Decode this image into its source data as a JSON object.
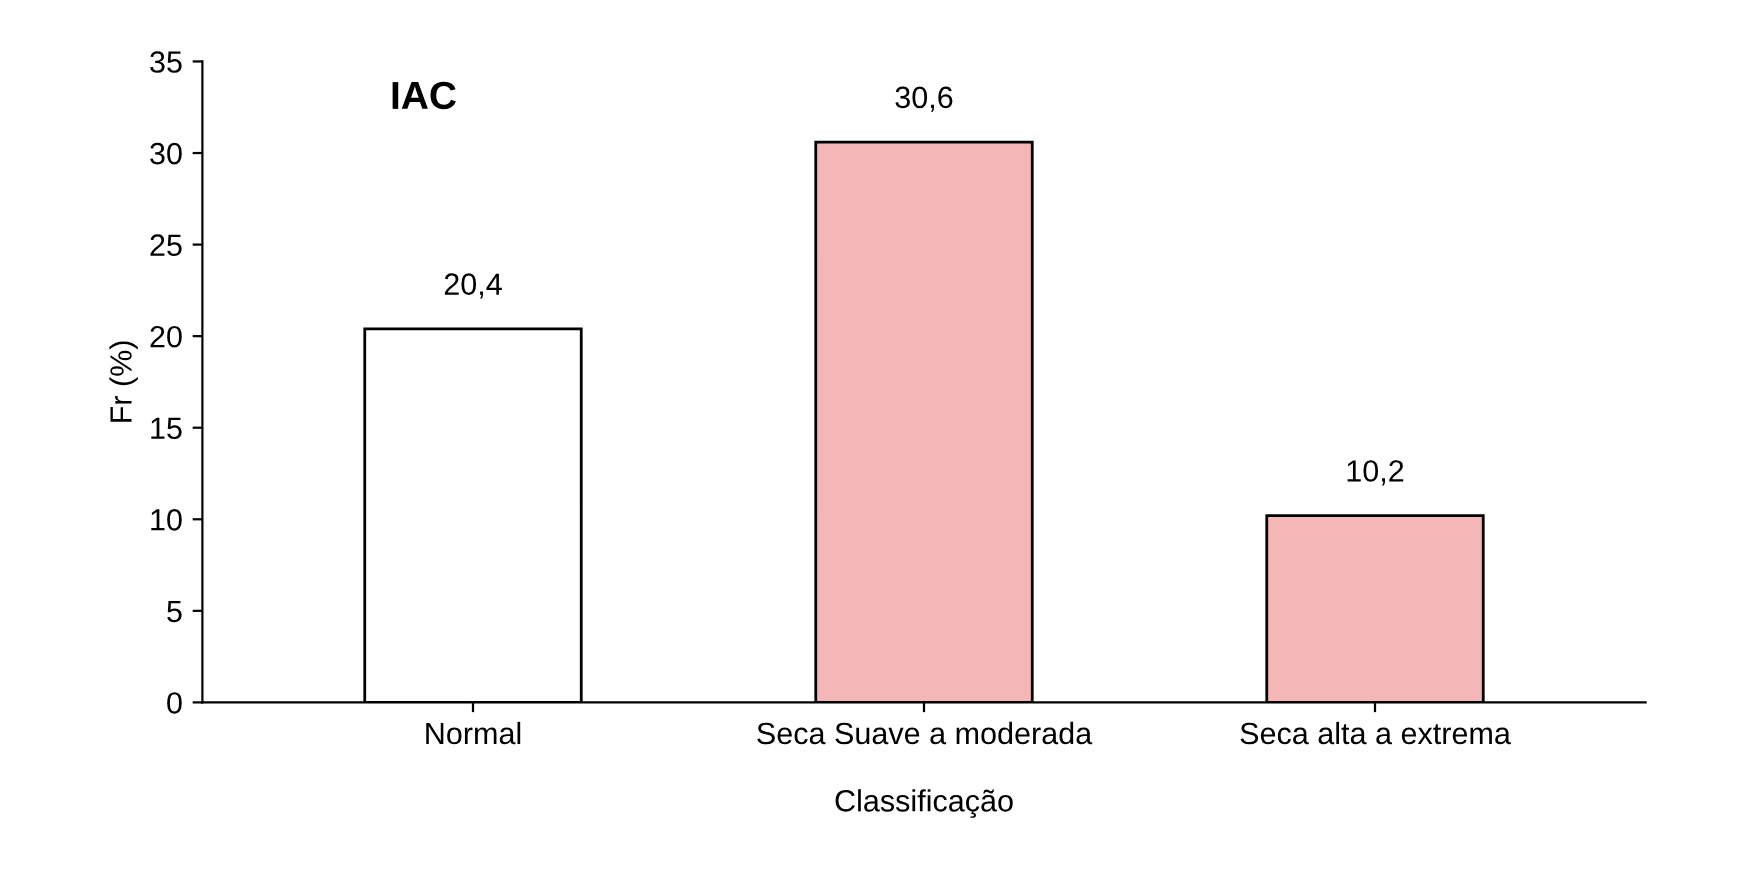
{
  "chart_data": {
    "type": "bar",
    "title": "IAC",
    "xlabel": "Classificação",
    "ylabel": "Fr (%)",
    "categories": [
      "Normal",
      "Seca Suave a moderada",
      "Seca alta a extrema"
    ],
    "values": [
      20.4,
      30.6,
      10.2
    ],
    "value_labels": [
      "20,4",
      "30,6",
      "10,2"
    ],
    "colors": [
      "#ffffff",
      "#f4b6b6",
      "#f4b6b6"
    ],
    "ylim": [
      0,
      35
    ],
    "yticks": [
      0,
      5,
      10,
      15,
      20,
      25,
      30,
      35
    ],
    "grid": false,
    "legend": false
  }
}
